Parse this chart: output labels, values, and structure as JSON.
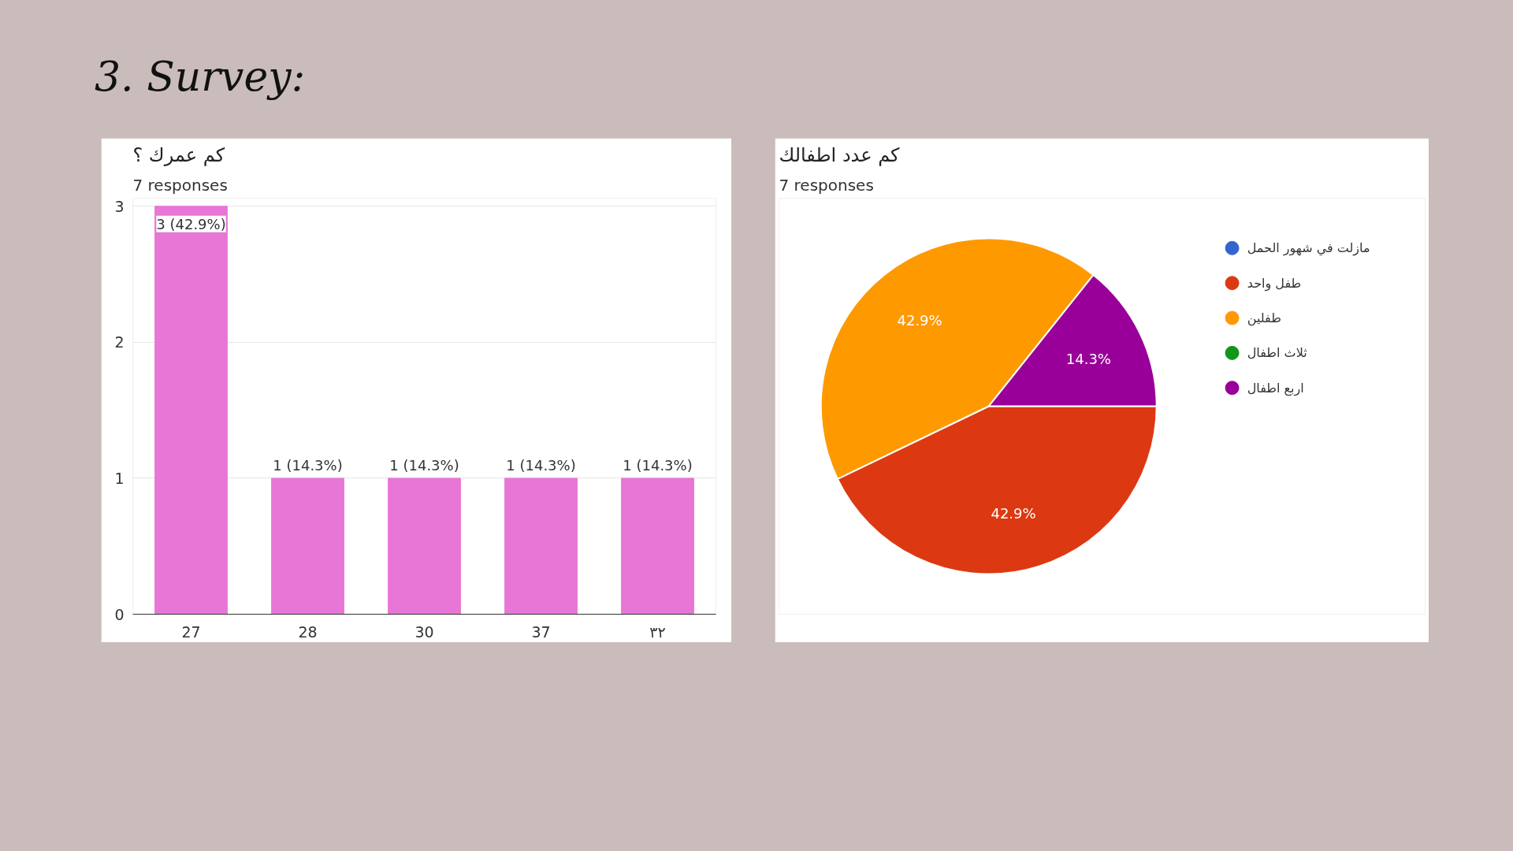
{
  "chart_data": [
    {
      "type": "bar",
      "title": "كم عمرك ؟",
      "subtitle": "7 responses",
      "annotations": [
        "3. Survey:"
      ],
      "categories": [
        "27",
        "28",
        "30",
        "37",
        "٣٢"
      ],
      "values": [
        3,
        1,
        1,
        1,
        1
      ],
      "color": "#e876d6",
      "value_labels": [
        "3 (42.9%)",
        "1 (14.3%)",
        "1 (14.3%)",
        "1 (14.3%)",
        "1 (14.3%)"
      ],
      "ylim": [
        0,
        3
      ],
      "yticks": [
        0,
        1,
        2,
        3
      ],
      "grid": "y"
    },
    {
      "type": "pie",
      "title": "كم عدد اطفالك",
      "subtitle": "7 responses",
      "categories": [
        "مازلت في شهور الحمل",
        "طفل واحد",
        "طفلين",
        "ثلاث اطفال",
        "اربع اطفال"
      ],
      "values": [
        0,
        42.9,
        42.9,
        0,
        14.3
      ],
      "colors": [
        "#3366cc",
        "#dc3912",
        "#ff9900",
        "#109618",
        "#990099"
      ],
      "value_labels": [
        null,
        "42.9%",
        "42.9%",
        null,
        "14.3%"
      ],
      "legend": "right"
    }
  ]
}
